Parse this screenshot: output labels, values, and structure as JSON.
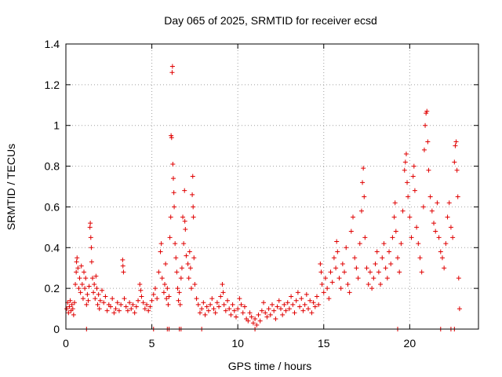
{
  "chart_data": {
    "type": "scatter",
    "title": "Day 065 of 2025, SRMTID for receiver ecsd",
    "xlabel": "GPS time / hours",
    "ylabel": "SRMTID / TECUs",
    "xlim": [
      0,
      24
    ],
    "ylim": [
      0,
      1.4
    ],
    "xticks": [
      0,
      5,
      10,
      15,
      20
    ],
    "yticks": [
      0,
      0.2,
      0.4,
      0.6,
      0.8,
      1,
      1.2,
      1.4
    ],
    "xtick_labels": [
      "0",
      "5",
      "10",
      "15",
      "20"
    ],
    "ytick_labels": [
      "0",
      "0.2",
      "0.4",
      "0.6",
      "0.8",
      "1",
      "1.2",
      "1.4"
    ],
    "grid": true,
    "marker": "+",
    "marker_color": "#e00000",
    "series": [
      {
        "name": "SRMTID",
        "points": [
          [
            0.05,
            0.1
          ],
          [
            0.1,
            0.13
          ],
          [
            0.15,
            0.08
          ],
          [
            0.2,
            0.11
          ],
          [
            0.25,
            0.14
          ],
          [
            0.3,
            0.09
          ],
          [
            0.35,
            0.12
          ],
          [
            0.4,
            0.1
          ],
          [
            0.45,
            0.07
          ],
          [
            0.5,
            0.13
          ],
          [
            0.55,
            0.22
          ],
          [
            0.6,
            0.28
          ],
          [
            0.62,
            0.33
          ],
          [
            0.65,
            0.35
          ],
          [
            0.7,
            0.3
          ],
          [
            0.75,
            0.2
          ],
          [
            0.8,
            0.25
          ],
          [
            0.85,
            0.18
          ],
          [
            0.9,
            0.31
          ],
          [
            0.95,
            0.22
          ],
          [
            1.0,
            0.15
          ],
          [
            1.05,
            0.28
          ],
          [
            1.1,
            0.2
          ],
          [
            1.15,
            0.25
          ],
          [
            1.2,
            0.12
          ],
          [
            1.25,
            0.17
          ],
          [
            1.3,
            0.14
          ],
          [
            1.35,
            0.21
          ],
          [
            1.4,
            0.5
          ],
          [
            1.42,
            0.52
          ],
          [
            1.45,
            0.45
          ],
          [
            1.48,
            0.4
          ],
          [
            1.5,
            0.33
          ],
          [
            1.55,
            0.25
          ],
          [
            1.6,
            0.18
          ],
          [
            1.65,
            0.22
          ],
          [
            1.7,
            0.15
          ],
          [
            1.75,
            0.26
          ],
          [
            1.8,
            0.2
          ],
          [
            1.85,
            0.12
          ],
          [
            1.9,
            0.17
          ],
          [
            1.95,
            0.1
          ],
          [
            2.0,
            0.14
          ],
          [
            2.1,
            0.19
          ],
          [
            2.2,
            0.13
          ],
          [
            2.3,
            0.16
          ],
          [
            2.4,
            0.09
          ],
          [
            2.5,
            0.12
          ],
          [
            2.6,
            0.11
          ],
          [
            2.7,
            0.15
          ],
          [
            2.8,
            0.08
          ],
          [
            2.9,
            0.1
          ],
          [
            3.0,
            0.13
          ],
          [
            3.1,
            0.09
          ],
          [
            3.2,
            0.12
          ],
          [
            3.3,
            0.34
          ],
          [
            3.32,
            0.31
          ],
          [
            3.35,
            0.28
          ],
          [
            3.4,
            0.15
          ],
          [
            3.5,
            0.11
          ],
          [
            3.6,
            0.09
          ],
          [
            3.7,
            0.13
          ],
          [
            3.8,
            0.1
          ],
          [
            3.9,
            0.12
          ],
          [
            4.0,
            0.08
          ],
          [
            4.1,
            0.11
          ],
          [
            4.2,
            0.14
          ],
          [
            4.3,
            0.22
          ],
          [
            4.35,
            0.19
          ],
          [
            4.4,
            0.16
          ],
          [
            4.5,
            0.13
          ],
          [
            4.6,
            0.1
          ],
          [
            4.7,
            0.12
          ],
          [
            4.8,
            0.09
          ],
          [
            4.9,
            0.11
          ],
          [
            5.0,
            0.14
          ],
          [
            5.1,
            0.17
          ],
          [
            5.2,
            0.2
          ],
          [
            5.3,
            0.15
          ],
          [
            5.4,
            0.28
          ],
          [
            5.5,
            0.38
          ],
          [
            5.55,
            0.42
          ],
          [
            5.6,
            0.25
          ],
          [
            5.7,
            0.18
          ],
          [
            5.75,
            0.22
          ],
          [
            5.8,
            0.32
          ],
          [
            5.85,
            0.15
          ],
          [
            5.9,
            0.2
          ],
          [
            5.95,
            0.12
          ],
          [
            6.0,
            0.16
          ],
          [
            6.05,
            0.45
          ],
          [
            6.1,
            0.55
          ],
          [
            6.12,
            0.95
          ],
          [
            6.15,
            0.94
          ],
          [
            6.18,
            1.26
          ],
          [
            6.2,
            1.29
          ],
          [
            6.22,
            0.81
          ],
          [
            6.25,
            0.74
          ],
          [
            6.28,
            0.67
          ],
          [
            6.3,
            0.6
          ],
          [
            6.35,
            0.42
          ],
          [
            6.4,
            0.35
          ],
          [
            6.45,
            0.28
          ],
          [
            6.5,
            0.2
          ],
          [
            6.55,
            0.14
          ],
          [
            6.6,
            0.18
          ],
          [
            6.65,
            0.12
          ],
          [
            6.7,
            0.25
          ],
          [
            6.75,
            0.3
          ],
          [
            6.8,
            0.55
          ],
          [
            6.85,
            0.42
          ],
          [
            6.9,
            0.68
          ],
          [
            6.92,
            0.53
          ],
          [
            6.95,
            0.49
          ],
          [
            7.0,
            0.36
          ],
          [
            7.1,
            0.32
          ],
          [
            7.15,
            0.25
          ],
          [
            7.2,
            0.38
          ],
          [
            7.25,
            0.3
          ],
          [
            7.3,
            0.2
          ],
          [
            7.35,
            0.66
          ],
          [
            7.38,
            0.75
          ],
          [
            7.4,
            0.6
          ],
          [
            7.42,
            0.55
          ],
          [
            7.45,
            0.35
          ],
          [
            7.5,
            0.22
          ],
          [
            7.6,
            0.15
          ],
          [
            7.7,
            0.12
          ],
          [
            7.8,
            0.08
          ],
          [
            7.9,
            0.1
          ],
          [
            8.0,
            0.13
          ],
          [
            8.1,
            0.07
          ],
          [
            8.2,
            0.11
          ],
          [
            8.3,
            0.09
          ],
          [
            8.4,
            0.12
          ],
          [
            8.5,
            0.15
          ],
          [
            8.6,
            0.1
          ],
          [
            8.7,
            0.08
          ],
          [
            8.8,
            0.13
          ],
          [
            8.9,
            0.11
          ],
          [
            9.0,
            0.16
          ],
          [
            9.1,
            0.22
          ],
          [
            9.15,
            0.18
          ],
          [
            9.2,
            0.12
          ],
          [
            9.3,
            0.09
          ],
          [
            9.4,
            0.14
          ],
          [
            9.5,
            0.1
          ],
          [
            9.6,
            0.07
          ],
          [
            9.7,
            0.12
          ],
          [
            9.8,
            0.09
          ],
          [
            9.9,
            0.06
          ],
          [
            10.0,
            0.1
          ],
          [
            10.1,
            0.15
          ],
          [
            10.2,
            0.12
          ],
          [
            10.3,
            0.08
          ],
          [
            10.4,
            0.11
          ],
          [
            10.5,
            0.05
          ],
          [
            10.6,
            0.04
          ],
          [
            10.7,
            0.08
          ],
          [
            10.8,
            0.06
          ],
          [
            10.9,
            0.03
          ],
          [
            11.0,
            0.05
          ],
          [
            11.1,
            0.02
          ],
          [
            11.2,
            0.07
          ],
          [
            11.3,
            0.04
          ],
          [
            11.4,
            0.09
          ],
          [
            11.5,
            0.13
          ],
          [
            11.6,
            0.08
          ],
          [
            11.7,
            0.06
          ],
          [
            11.8,
            0.1
          ],
          [
            11.9,
            0.07
          ],
          [
            12.0,
            0.12
          ],
          [
            12.1,
            0.09
          ],
          [
            12.2,
            0.05
          ],
          [
            12.3,
            0.11
          ],
          [
            12.4,
            0.14
          ],
          [
            12.5,
            0.1
          ],
          [
            12.6,
            0.07
          ],
          [
            12.7,
            0.12
          ],
          [
            12.8,
            0.09
          ],
          [
            12.9,
            0.13
          ],
          [
            13.0,
            0.1
          ],
          [
            13.1,
            0.16
          ],
          [
            13.2,
            0.12
          ],
          [
            13.3,
            0.08
          ],
          [
            13.4,
            0.14
          ],
          [
            13.5,
            0.18
          ],
          [
            13.6,
            0.11
          ],
          [
            13.7,
            0.15
          ],
          [
            13.8,
            0.09
          ],
          [
            13.9,
            0.12
          ],
          [
            14.0,
            0.17
          ],
          [
            14.1,
            0.1
          ],
          [
            14.2,
            0.14
          ],
          [
            14.3,
            0.08
          ],
          [
            14.4,
            0.13
          ],
          [
            14.5,
            0.11
          ],
          [
            14.6,
            0.16
          ],
          [
            14.7,
            0.12
          ],
          [
            14.8,
            0.32
          ],
          [
            14.85,
            0.28
          ],
          [
            14.9,
            0.22
          ],
          [
            15.0,
            0.18
          ],
          [
            15.1,
            0.25
          ],
          [
            15.2,
            0.2
          ],
          [
            15.3,
            0.15
          ],
          [
            15.4,
            0.28
          ],
          [
            15.5,
            0.23
          ],
          [
            15.6,
            0.35
          ],
          [
            15.7,
            0.3
          ],
          [
            15.75,
            0.43
          ],
          [
            15.8,
            0.38
          ],
          [
            15.9,
            0.25
          ],
          [
            16.0,
            0.2
          ],
          [
            16.1,
            0.32
          ],
          [
            16.2,
            0.28
          ],
          [
            16.3,
            0.4
          ],
          [
            16.4,
            0.22
          ],
          [
            16.5,
            0.18
          ],
          [
            16.6,
            0.48
          ],
          [
            16.7,
            0.55
          ],
          [
            16.8,
            0.35
          ],
          [
            16.9,
            0.3
          ],
          [
            17.0,
            0.25
          ],
          [
            17.1,
            0.42
          ],
          [
            17.2,
            0.58
          ],
          [
            17.25,
            0.72
          ],
          [
            17.3,
            0.79
          ],
          [
            17.35,
            0.65
          ],
          [
            17.4,
            0.45
          ],
          [
            17.5,
            0.3
          ],
          [
            17.6,
            0.22
          ],
          [
            17.7,
            0.28
          ],
          [
            17.8,
            0.2
          ],
          [
            17.9,
            0.25
          ],
          [
            18.0,
            0.32
          ],
          [
            18.1,
            0.38
          ],
          [
            18.2,
            0.28
          ],
          [
            18.3,
            0.22
          ],
          [
            18.4,
            0.35
          ],
          [
            18.5,
            0.42
          ],
          [
            18.6,
            0.3
          ],
          [
            18.7,
            0.25
          ],
          [
            18.8,
            0.38
          ],
          [
            18.9,
            0.32
          ],
          [
            19.0,
            0.45
          ],
          [
            19.1,
            0.55
          ],
          [
            19.15,
            0.62
          ],
          [
            19.2,
            0.48
          ],
          [
            19.3,
            0.35
          ],
          [
            19.4,
            0.28
          ],
          [
            19.5,
            0.42
          ],
          [
            19.6,
            0.58
          ],
          [
            19.7,
            0.78
          ],
          [
            19.75,
            0.82
          ],
          [
            19.8,
            0.86
          ],
          [
            19.85,
            0.72
          ],
          [
            19.9,
            0.65
          ],
          [
            20.0,
            0.55
          ],
          [
            20.1,
            0.45
          ],
          [
            20.2,
            0.75
          ],
          [
            20.25,
            0.8
          ],
          [
            20.3,
            0.68
          ],
          [
            20.4,
            0.5
          ],
          [
            20.5,
            0.42
          ],
          [
            20.6,
            0.35
          ],
          [
            20.7,
            0.28
          ],
          [
            20.8,
            0.6
          ],
          [
            20.85,
            0.88
          ],
          [
            20.9,
            1.0
          ],
          [
            20.95,
            1.06
          ],
          [
            21.0,
            1.07
          ],
          [
            21.05,
            0.92
          ],
          [
            21.1,
            0.78
          ],
          [
            21.2,
            0.65
          ],
          [
            21.3,
            0.58
          ],
          [
            21.4,
            0.52
          ],
          [
            21.5,
            0.48
          ],
          [
            21.6,
            0.62
          ],
          [
            21.7,
            0.45
          ],
          [
            21.8,
            0.38
          ],
          [
            21.9,
            0.35
          ],
          [
            22.0,
            0.3
          ],
          [
            22.1,
            0.42
          ],
          [
            22.2,
            0.55
          ],
          [
            22.3,
            0.62
          ],
          [
            22.4,
            0.5
          ],
          [
            22.5,
            0.45
          ],
          [
            22.6,
            0.82
          ],
          [
            22.65,
            0.9
          ],
          [
            22.7,
            0.92
          ],
          [
            22.75,
            0.78
          ],
          [
            22.8,
            0.65
          ],
          [
            22.85,
            0.25
          ],
          [
            22.9,
            0.1
          ]
        ],
        "zero_points": [
          1.2,
          5.1,
          5.9,
          6.0,
          6.6,
          6.7,
          7.9,
          11.0,
          19.3,
          21.8,
          22.4,
          22.6
        ]
      }
    ]
  }
}
